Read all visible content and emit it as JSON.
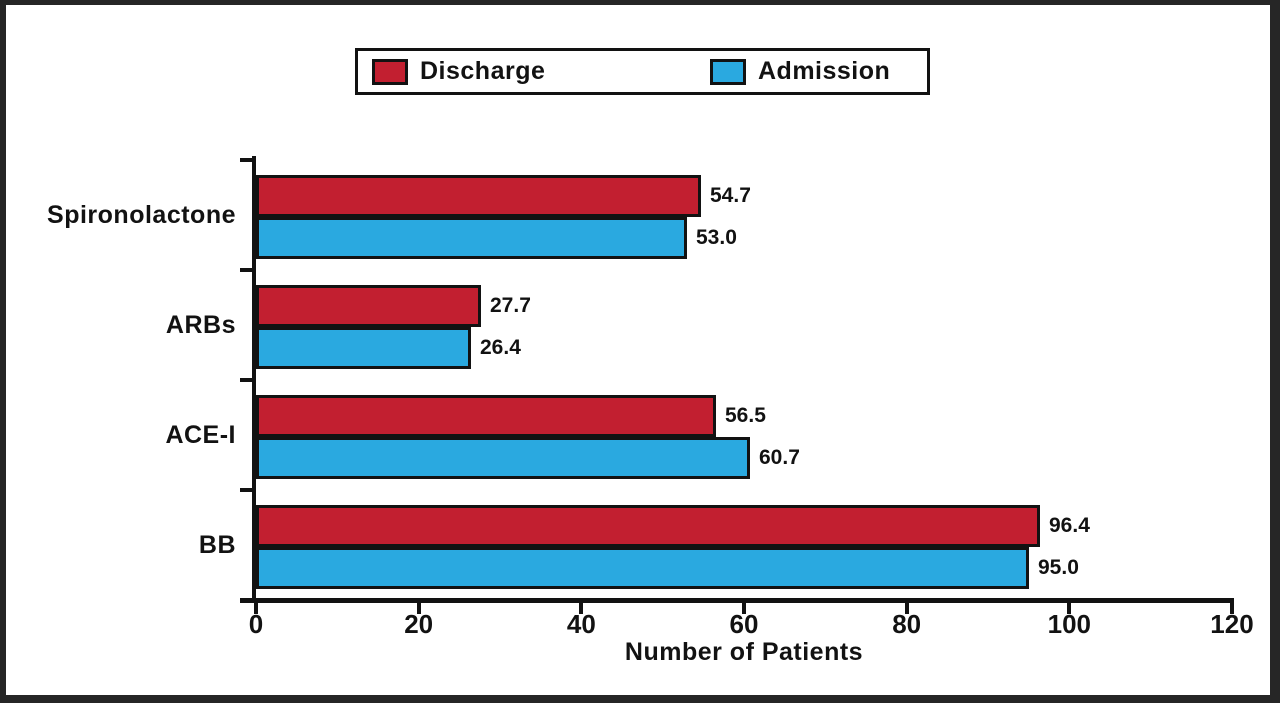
{
  "chart_data": {
    "type": "bar",
    "orientation": "horizontal",
    "title": "",
    "categories": [
      "Spironolactone",
      "ARBs",
      "ACE-I",
      "BB"
    ],
    "series": [
      {
        "name": "Discharge",
        "color": "#C21F30",
        "values": [
          54.7,
          27.7,
          56.5,
          96.4
        ]
      },
      {
        "name": "Admission",
        "color": "#2AA9E0",
        "values": [
          53.0,
          26.4,
          60.7,
          95.0
        ]
      }
    ],
    "xlabel": "Number of Patients",
    "xlim": [
      0,
      120
    ],
    "xticks": [
      0,
      20,
      40,
      60,
      80,
      100,
      120
    ],
    "value_labels": true,
    "legend_position": "top",
    "grid": "off"
  }
}
